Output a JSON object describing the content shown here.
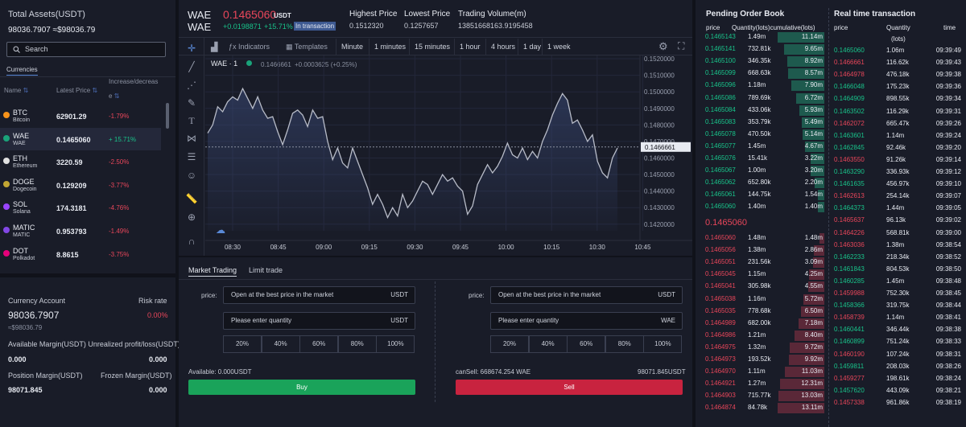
{
  "assets": {
    "title": "Total Assets(USDT)",
    "value": "98036.7907 ≈$98036.79"
  },
  "search": {
    "label": "Search"
  },
  "currencies": {
    "tab": "Currencies",
    "col_name": "Name",
    "col_price": "Latest Price",
    "col_change_1": "Increase/decreas",
    "col_change_2": "e",
    "rows": [
      {
        "sym": "BTC",
        "name": "Bitcoin",
        "price": "62901.29",
        "change": "-1.79%",
        "up": false,
        "color": "#f7931a"
      },
      {
        "sym": "WAE",
        "name": "WAE",
        "price": "0.1465060",
        "change": "+ 15.71%",
        "up": true,
        "color": "#1aa37a"
      },
      {
        "sym": "ETH",
        "name": "Ethereum",
        "price": "3220.59",
        "change": "-2.50%",
        "up": false,
        "color": "#e0e0e0"
      },
      {
        "sym": "DOGE",
        "name": "Dogecoin",
        "price": "0.129209",
        "change": "-3.77%",
        "up": false,
        "color": "#c2a633"
      },
      {
        "sym": "SOL",
        "name": "Solana",
        "price": "174.3181",
        "change": "-4.76%",
        "up": false,
        "color": "#9945ff"
      },
      {
        "sym": "MATIC",
        "name": "MATIC",
        "price": "0.953793",
        "change": "-1.49%",
        "up": false,
        "color": "#8247e5"
      },
      {
        "sym": "DOT",
        "name": "Polkadot",
        "price": "8.8615",
        "change": "-3.75%",
        "up": false,
        "color": "#e6007a"
      }
    ]
  },
  "account": {
    "title": "Currency Account",
    "risk_label": "Risk rate",
    "value": "98036.7907",
    "usd": "≈$98036.79",
    "risk": "0.00%",
    "margin_label": "Available Margin(USDT) Unrealized profit/loss(USDT)",
    "margin_a": "0.000",
    "margin_b": "0.000",
    "pos_label": "Position Margin(USDT)",
    "frozen_label": "Frozen Margin(USDT)",
    "pos_value": "98071.845",
    "frozen_value": "0.000"
  },
  "ticker": {
    "sym": "WAE",
    "sub": "WAE",
    "price": "0.1465060",
    "unit": "USDT",
    "change_abs": "+0.0198871",
    "change_pct": "+15.71%",
    "status": "In transaction",
    "high_label": "Highest Price",
    "high": "0.1512320",
    "low_label": "Lowest Price",
    "low": "0.1257657",
    "vol_label": "Trading Volume(m)",
    "vol": "13851668163.9195458"
  },
  "toolbar": {
    "indicators": "Indicators",
    "templates": "Templates",
    "timeframes": [
      "Minute",
      "1 minutes",
      "15 minutes",
      "1 hour",
      "4 hours",
      "1 day",
      "1 week"
    ]
  },
  "chart_data": {
    "type": "line",
    "symbol": "WAE",
    "interval": "1",
    "last": "0.1466661",
    "delta": "+0.0003625 (+0.25%)",
    "ylim": [
      0.1416,
      0.1521
    ],
    "yticks": [
      "0.1520000",
      "0.1510000",
      "0.1500000",
      "0.1490000",
      "0.1480000",
      "0.1470000",
      "0.1460000",
      "0.1450000",
      "0.1440000",
      "0.1430000",
      "0.1420000"
    ],
    "xticks": [
      "08:30",
      "08:45",
      "09:00",
      "09:15",
      "09:30",
      "09:45",
      "10:00",
      "10:15",
      "10:30",
      "10:45"
    ],
    "values": [
      0.1475,
      0.148,
      0.1491,
      0.1488,
      0.1494,
      0.1497,
      0.1495,
      0.1502,
      0.1496,
      0.149,
      0.1497,
      0.1489,
      0.1484,
      0.1485,
      0.1476,
      0.1468,
      0.1477,
      0.1487,
      0.1489,
      0.1486,
      0.1479,
      0.1489,
      0.1484,
      0.1485,
      0.147,
      0.1459,
      0.1466,
      0.1457,
      0.1454,
      0.1466,
      0.1458,
      0.145,
      0.1442,
      0.1432,
      0.1438,
      0.1432,
      0.1424,
      0.143,
      0.1425,
      0.1438,
      0.143,
      0.1434,
      0.144,
      0.1446,
      0.1444,
      0.1438,
      0.1444,
      0.145,
      0.1446,
      0.1448,
      0.1443,
      0.144,
      0.1426,
      0.1431,
      0.1444,
      0.145,
      0.1456,
      0.1451,
      0.1455,
      0.1461,
      0.1469,
      0.1462,
      0.146,
      0.1466,
      0.1459,
      0.1464,
      0.146,
      0.147,
      0.1477,
      0.1486,
      0.1493,
      0.1499,
      0.1495,
      0.1481,
      0.1483,
      0.1477,
      0.147,
      0.1474,
      0.1458,
      0.1451,
      0.1448,
      0.146,
      0.1466
    ]
  },
  "trade": {
    "tab_market": "Market Trading",
    "tab_limit": "Limit trade",
    "price_label": "price:",
    "best": "Open at the best price in the market",
    "unit": "USDT",
    "qty_ph": "Please enter quantity",
    "unit_sell": "WAE",
    "pcts": [
      "20%",
      "40%",
      "60%",
      "80%",
      "100%"
    ],
    "available": "Available: 0.000USDT",
    "can_sell": "canSell: 668674.254 WAE",
    "right_amt": "98071.845USDT",
    "buy": "Buy",
    "sell": "Sell"
  },
  "book": {
    "title": "Pending Order Book",
    "col_price": "price",
    "col_qty": "Quantity(lots)cumulative(lots)",
    "mid": "0.1465060",
    "bids": [
      [
        "0.1465143",
        "1.49m",
        "11.14m"
      ],
      [
        "0.1465141",
        "732.81k",
        "9.65m"
      ],
      [
        "0.1465100",
        "346.35k",
        "8.92m"
      ],
      [
        "0.1465099",
        "668.63k",
        "8.57m"
      ],
      [
        "0.1465096",
        "1.18m",
        "7.90m"
      ],
      [
        "0.1465086",
        "789.69k",
        "6.72m"
      ],
      [
        "0.1465084",
        "433.06k",
        "5.93m"
      ],
      [
        "0.1465083",
        "353.79k",
        "5.49m"
      ],
      [
        "0.1465078",
        "470.50k",
        "5.14m"
      ],
      [
        "0.1465077",
        "1.45m",
        "4.67m"
      ],
      [
        "0.1465076",
        "15.41k",
        "3.22m"
      ],
      [
        "0.1465067",
        "1.00m",
        "3.20m"
      ],
      [
        "0.1465062",
        "652.80k",
        "2.20m"
      ],
      [
        "0.1465061",
        "144.75k",
        "1.54m"
      ],
      [
        "0.1465060",
        "1.40m",
        "1.40m"
      ]
    ],
    "bid_fill": [
      1.0,
      0.87,
      0.8,
      0.77,
      0.71,
      0.6,
      0.53,
      0.49,
      0.46,
      0.42,
      0.29,
      0.29,
      0.2,
      0.14,
      0.13
    ],
    "asks": [
      [
        "0.1465060",
        "1.48m",
        "1.48m"
      ],
      [
        "0.1465056",
        "1.38m",
        "2.86m"
      ],
      [
        "0.1465051",
        "231.56k",
        "3.09m"
      ],
      [
        "0.1465045",
        "1.15m",
        "4.25m"
      ],
      [
        "0.1465041",
        "305.98k",
        "4.55m"
      ],
      [
        "0.1465038",
        "1.16m",
        "5.72m"
      ],
      [
        "0.1465035",
        "778.68k",
        "6.50m"
      ],
      [
        "0.1464989",
        "682.00k",
        "7.18m"
      ],
      [
        "0.1464986",
        "1.21m",
        "8.40m"
      ],
      [
        "0.1464975",
        "1.32m",
        "9.72m"
      ],
      [
        "0.1464973",
        "193.52k",
        "9.92m"
      ],
      [
        "0.1464970",
        "1.11m",
        "11.03m"
      ],
      [
        "0.1464921",
        "1.27m",
        "12.31m"
      ],
      [
        "0.1464903",
        "715.77k",
        "13.03m"
      ],
      [
        "0.1464874",
        "84.78k",
        "13.11m"
      ]
    ],
    "ask_fill": [
      0.11,
      0.22,
      0.24,
      0.32,
      0.35,
      0.44,
      0.5,
      0.55,
      0.64,
      0.74,
      0.76,
      0.84,
      0.94,
      0.99,
      1.0
    ]
  },
  "realtime": {
    "title": "Real time transaction",
    "col_price": "price",
    "col_qty": "Quantity",
    "col_qty2": "(lots)",
    "col_time": "time",
    "rows": [
      [
        "0.1465060",
        "1.06m",
        "09:39:49",
        true
      ],
      [
        "0.1466661",
        "116.62k",
        "09:39:43",
        false
      ],
      [
        "0.1464978",
        "476.18k",
        "09:39:38",
        false
      ],
      [
        "0.1466048",
        "175.23k",
        "09:39:36",
        true
      ],
      [
        "0.1464909",
        "898.55k",
        "09:39:34",
        true
      ],
      [
        "0.1463502",
        "116.29k",
        "09:39:31",
        true
      ],
      [
        "0.1462072",
        "665.47k",
        "09:39:26",
        false
      ],
      [
        "0.1463601",
        "1.14m",
        "09:39:24",
        true
      ],
      [
        "0.1462845",
        "92.46k",
        "09:39:20",
        true
      ],
      [
        "0.1463550",
        "91.26k",
        "09:39:14",
        false
      ],
      [
        "0.1463290",
        "336.93k",
        "09:39:12",
        true
      ],
      [
        "0.1461635",
        "456.97k",
        "09:39:10",
        true
      ],
      [
        "0.1462613",
        "254.14k",
        "09:39:07",
        false
      ],
      [
        "0.1464373",
        "1.44m",
        "09:39:05",
        true
      ],
      [
        "0.1465637",
        "96.13k",
        "09:39:02",
        false
      ],
      [
        "0.1464226",
        "568.81k",
        "09:39:00",
        false
      ],
      [
        "0.1463036",
        "1.38m",
        "09:38:54",
        false
      ],
      [
        "0.1462233",
        "218.34k",
        "09:38:52",
        true
      ],
      [
        "0.1461843",
        "804.53k",
        "09:38:50",
        true
      ],
      [
        "0.1460285",
        "1.45m",
        "09:38:48",
        true
      ],
      [
        "0.1459988",
        "752.30k",
        "09:38:45",
        false
      ],
      [
        "0.1458366",
        "319.75k",
        "09:38:44",
        true
      ],
      [
        "0.1458739",
        "1.14m",
        "09:38:41",
        false
      ],
      [
        "0.1460441",
        "346.44k",
        "09:38:38",
        true
      ],
      [
        "0.1460899",
        "751.24k",
        "09:38:33",
        true
      ],
      [
        "0.1460190",
        "107.24k",
        "09:38:31",
        false
      ],
      [
        "0.1459811",
        "208.03k",
        "09:38:26",
        true
      ],
      [
        "0.1459277",
        "198.61k",
        "09:38:24",
        false
      ],
      [
        "0.1457620",
        "443.09k",
        "09:38:21",
        true
      ],
      [
        "0.1457338",
        "961.86k",
        "09:38:19",
        false
      ]
    ]
  }
}
